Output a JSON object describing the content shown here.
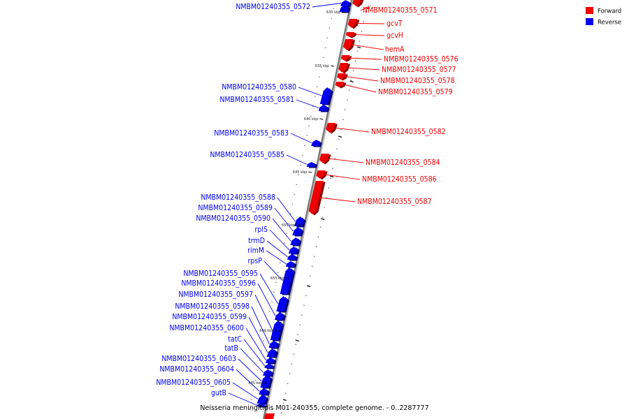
{
  "caption": "Neisseria meningitidis M01-240355, complete genome. - 0..2287777",
  "legend": [
    {
      "label": "Forward",
      "color": "#ee0000"
    },
    {
      "label": "Reverse",
      "color": "#0000ee"
    }
  ],
  "colors": {
    "forward": "#ee0000",
    "reverse": "#0000ee",
    "backbone": "#777777"
  },
  "kbp_marks": [
    "630 kbp",
    "635 kbp",
    "640 kbp",
    "645 kbp",
    "650 kbp",
    "655 kbp",
    "660 kbp",
    "665 kbp"
  ],
  "forward_genes": [
    "NMBM01240355_0571",
    "gcvT",
    "gcvH",
    "hemA",
    "NMBM01240355_0576",
    "NMBM01240355_0577",
    "NMBM01240355_0578",
    "NMBM01240355_0579",
    "NMBM01240355_0582",
    "NMBM01240355_0584",
    "NMBM01240355_0586",
    "NMBM01240355_0587"
  ],
  "reverse_genes": [
    "NMBM01240355_0572",
    "NMBM01240355_0580",
    "NMBM01240355_0581",
    "NMBM01240355_0583",
    "NMBM01240355_0585",
    "NMBM01240355_0588",
    "NMBM01240355_0589",
    "NMBM01240355_0590",
    "rplS",
    "trmD",
    "rimM",
    "rpsP",
    "NMBM01240355_0595",
    "NMBM01240355_0596",
    "NMBM01240355_0597",
    "NMBM01240355_0598",
    "NMBM01240355_0599",
    "NMBM01240355_0600",
    "tatC",
    "tatB",
    "NMBM01240355_0603",
    "NMBM01240355_0604",
    "NMBM01240355_0605",
    "gutB"
  ]
}
